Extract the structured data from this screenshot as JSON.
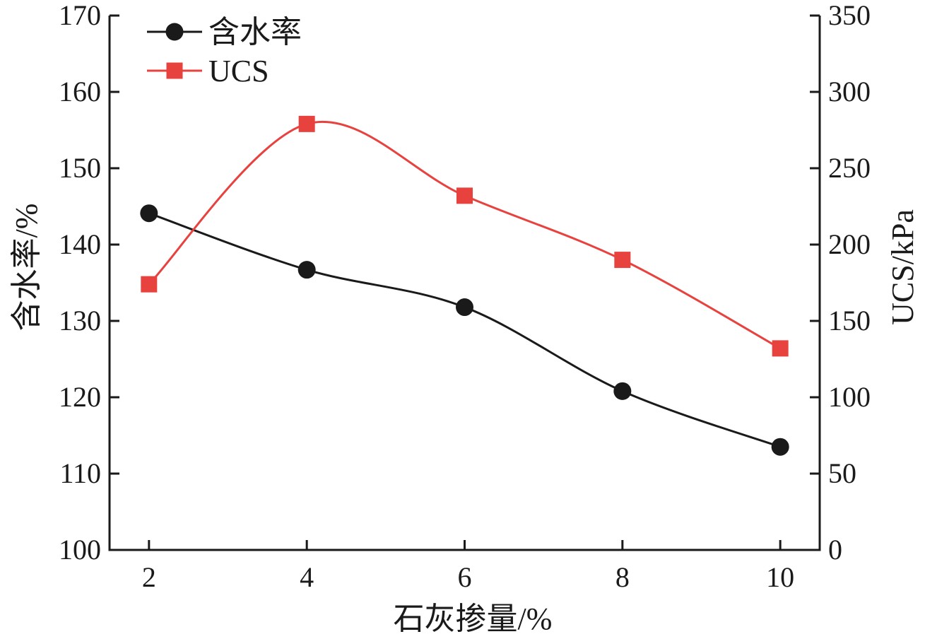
{
  "chart_data": {
    "type": "line",
    "smooth": true,
    "x": [
      2,
      4,
      6,
      8,
      10
    ],
    "x_ticks": [
      "2",
      "4",
      "6",
      "8",
      "10"
    ],
    "xlim": [
      1.5,
      10.5
    ],
    "xlabel": "石灰掺量/%",
    "ylabel_left": "含水率/%",
    "ylabel_right": "UCS/kPa",
    "ylim_left": [
      100,
      170
    ],
    "ylim_right": [
      0,
      350
    ],
    "y_ticks_left": [
      "100",
      "110",
      "120",
      "130",
      "140",
      "150",
      "160",
      "170"
    ],
    "y_ticks_right": [
      "0",
      "50",
      "100",
      "150",
      "200",
      "250",
      "300",
      "350"
    ],
    "grid": false,
    "legend_position": "top-left",
    "series": [
      {
        "name": "含水率",
        "axis": "left",
        "marker": "circle",
        "color": "#1a1a1a",
        "values": [
          144.1,
          136.7,
          131.8,
          120.8,
          113.5
        ]
      },
      {
        "name": "UCS",
        "axis": "right",
        "marker": "square",
        "color": "#e8423f",
        "values": [
          174,
          279,
          232,
          190,
          132
        ]
      }
    ]
  }
}
